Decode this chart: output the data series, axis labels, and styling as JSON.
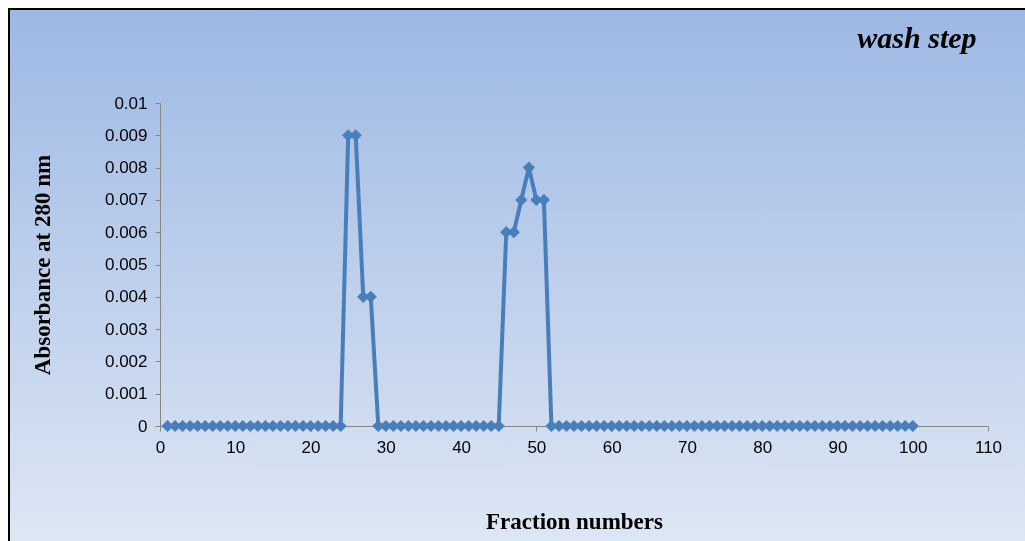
{
  "chart_data": {
    "type": "line",
    "title": "wash step",
    "xlabel": "Fraction numbers",
    "ylabel": "Absorbance at 280 nm",
    "x": [
      1,
      2,
      3,
      4,
      5,
      6,
      7,
      8,
      9,
      10,
      11,
      12,
      13,
      14,
      15,
      16,
      17,
      18,
      19,
      20,
      21,
      22,
      23,
      24,
      25,
      26,
      27,
      28,
      29,
      30,
      31,
      32,
      33,
      34,
      35,
      36,
      37,
      38,
      39,
      40,
      41,
      42,
      43,
      44,
      45,
      46,
      47,
      48,
      49,
      50,
      51,
      52,
      53,
      54,
      55,
      56,
      57,
      58,
      59,
      60,
      61,
      62,
      63,
      64,
      65,
      66,
      67,
      68,
      69,
      70,
      71,
      72,
      73,
      74,
      75,
      76,
      77,
      78,
      79,
      80,
      81,
      82,
      83,
      84,
      85,
      86,
      87,
      88,
      89,
      90,
      91,
      92,
      93,
      94,
      95,
      96,
      97,
      98,
      99,
      100
    ],
    "series": [
      {
        "color": "#4a7ebb",
        "values": [
          0,
          0,
          0,
          0,
          0,
          0,
          0,
          0,
          0,
          0,
          0,
          0,
          0,
          0,
          0,
          0,
          0,
          0,
          0,
          0,
          0,
          0,
          0,
          0,
          0.009,
          0.009,
          0.004,
          0.004,
          0,
          0,
          0,
          0,
          0,
          0,
          0,
          0,
          0,
          0,
          0,
          0,
          0,
          0,
          0,
          0,
          0,
          0.006,
          0.006,
          0.007,
          0.008,
          0.007,
          0.007,
          0,
          0,
          0,
          0,
          0,
          0,
          0,
          0,
          0,
          0,
          0,
          0,
          0,
          0,
          0,
          0,
          0,
          0,
          0,
          0,
          0,
          0,
          0,
          0,
          0,
          0,
          0,
          0,
          0,
          0,
          0,
          0,
          0,
          0,
          0,
          0,
          0,
          0,
          0,
          0,
          0,
          0,
          0,
          0,
          0,
          0,
          0,
          0,
          0
        ]
      }
    ],
    "xlim": [
      0,
      110
    ],
    "xticks": [
      0,
      10,
      20,
      30,
      40,
      50,
      60,
      70,
      80,
      90,
      100,
      110
    ],
    "ylim": [
      0,
      0.01
    ],
    "yticks": [
      0,
      0.001,
      0.002,
      0.003,
      0.004,
      0.005,
      0.006,
      0.007,
      0.008,
      0.009,
      0.01
    ],
    "grid": false,
    "marker": "diamond",
    "line_style": "solid"
  }
}
